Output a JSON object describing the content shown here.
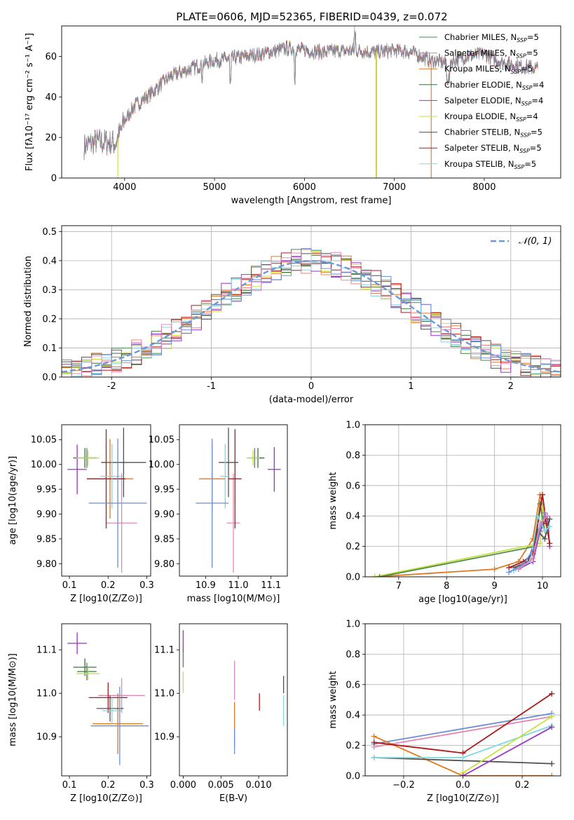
{
  "figure_title": "PLATE=0606, MJD=52365, FIBERID=0439, z=0.072",
  "model_colors": [
    "#4a8a4a",
    "#f08070",
    "#e07820",
    "#3d6d3d",
    "#9a32c8",
    "#c8e040",
    "#505050",
    "#b01818",
    "#80d8e0",
    "#6a8ed8",
    "#e088b8"
  ],
  "legend_models": [
    {
      "label": "Chabrier MILES, N",
      "sub": "SSP",
      "suffix": "=5",
      "color": "#4a8a4a"
    },
    {
      "label": "Salpeter MILES, N",
      "sub": "SSP",
      "suffix": "=5",
      "color": "#f08070"
    },
    {
      "label": "Kroupa MILES, N",
      "sub": "SSP",
      "suffix": "=5",
      "color": "#e07820"
    },
    {
      "label": "Chabrier ELODIE, N",
      "sub": "SSP",
      "suffix": "=4",
      "color": "#3d6d3d"
    },
    {
      "label": "Salpeter ELODIE, N",
      "sub": "SSP",
      "suffix": "=4",
      "color": "#9a32c8"
    },
    {
      "label": "Kroupa ELODIE, N",
      "sub": "SSP",
      "suffix": "=4",
      "color": "#c8e040"
    },
    {
      "label": "Chabrier STELIB, N",
      "sub": "SSP",
      "suffix": "=5",
      "color": "#505050"
    },
    {
      "label": "Salpeter STELIB, N",
      "sub": "SSP",
      "suffix": "=5",
      "color": "#b01818"
    },
    {
      "label": "Kroupa STELIB, N",
      "sub": "SSP",
      "suffix": "=5",
      "color": "#80d8e0"
    }
  ],
  "chart_data": [
    {
      "id": "spectrum",
      "type": "line",
      "xlabel": "wavelength [Angstrom, rest frame]",
      "ylabel": "Flux [fλ10⁻¹⁷ erg cm⁻² s⁻¹ A⁻¹]",
      "xlim": [
        3300,
        8850
      ],
      "ylim": [
        0,
        75
      ],
      "xticks": [
        4000,
        5000,
        6000,
        7000,
        8000
      ],
      "yticks": [
        0,
        20,
        40,
        60
      ],
      "continuum_x": [
        3550,
        3700,
        3900,
        4000,
        4100,
        4300,
        4500,
        4800,
        5000,
        5200,
        5500,
        5800,
        6000,
        6200,
        6500,
        6800,
        7000,
        7200,
        7400,
        7600,
        7800,
        8000,
        8200,
        8400,
        8600
      ],
      "continuum_y": [
        16,
        18,
        17,
        28,
        35,
        42,
        50,
        55,
        58,
        59,
        61,
        64,
        63,
        62,
        63,
        62,
        63,
        62,
        58,
        57,
        60,
        61,
        57,
        55,
        54
      ]
    },
    {
      "id": "residual_hist",
      "type": "histogram",
      "xlabel": "(data-model)/error",
      "ylabel": "Normed distribution",
      "xlim": [
        -2.5,
        2.5
      ],
      "ylim": [
        0,
        0.52
      ],
      "xticks": [
        -2,
        -1,
        0,
        1,
        2
      ],
      "yticks": [
        0.0,
        0.1,
        0.2,
        0.3,
        0.4,
        0.5
      ],
      "grid": true,
      "legend_position": "top-right",
      "reference_curve": "N(0,1)",
      "bin_width": 0.1
    },
    {
      "id": "age_vs_Z",
      "type": "scatter",
      "xlabel": "Z [log10(Z/Z⊙)]",
      "ylabel": "age  [log10(age/yr)]",
      "xlim": [
        0.08,
        0.31
      ],
      "ylim": [
        9.775,
        10.08
      ],
      "xticks": [
        0.1,
        0.2,
        0.3
      ],
      "yticks": [
        9.8,
        9.85,
        9.9,
        9.95,
        10.0,
        10.05
      ],
      "points": [
        {
          "x": 0.145,
          "xerr": 0.025,
          "y": 10.013,
          "yerr": 0.02,
          "color": "#4a8a4a"
        },
        {
          "x": 0.235,
          "xerr": 0.04,
          "y": 9.882,
          "yerr": 0.1,
          "color": "#e088b8"
        },
        {
          "x": 0.205,
          "xerr": 0.06,
          "y": 9.971,
          "yerr": 0.08,
          "color": "#e07820"
        },
        {
          "x": 0.14,
          "xerr": 0.03,
          "y": 10.013,
          "yerr": 0.02,
          "color": "#3d6d3d"
        },
        {
          "x": 0.12,
          "xerr": 0.025,
          "y": 9.99,
          "yerr": 0.05,
          "color": "#9a32c8"
        },
        {
          "x": 0.148,
          "xerr": 0.03,
          "y": 10.013,
          "yerr": 0.015,
          "color": "#c8e040"
        },
        {
          "x": 0.24,
          "xerr": 0.058,
          "y": 10.004,
          "yerr": 0.07,
          "color": "#505050"
        },
        {
          "x": 0.195,
          "xerr": 0.05,
          "y": 9.971,
          "yerr": 0.1,
          "color": "#b01818"
        },
        {
          "x": 0.21,
          "xerr": 0.03,
          "y": 9.976,
          "yerr": 0.065,
          "color": "#80d8e0"
        },
        {
          "x": 0.225,
          "xerr": 0.075,
          "y": 9.922,
          "yerr": 0.13,
          "color": "#6a8ed8"
        }
      ]
    },
    {
      "id": "age_vs_mass",
      "type": "scatter",
      "xlabel": "mass [log10(M/M⊙)]",
      "ylabel": "",
      "xlim": [
        10.82,
        11.15
      ],
      "ylim": [
        9.775,
        10.08
      ],
      "xticks": [
        10.9,
        11.0,
        11.1
      ],
      "yticks": [
        9.8,
        9.85,
        9.9,
        9.95,
        10.0,
        10.05
      ],
      "points": [
        {
          "x": 11.05,
          "xerr": 0.02,
          "y": 10.013,
          "yerr": 0.02,
          "color": "#4a8a4a"
        },
        {
          "x": 10.985,
          "xerr": 0.02,
          "y": 9.882,
          "yerr": 0.1,
          "color": "#e088b8"
        },
        {
          "x": 10.92,
          "xerr": 0.04,
          "y": 9.971,
          "yerr": 0.07,
          "color": "#e07820"
        },
        {
          "x": 11.06,
          "xerr": 0.02,
          "y": 10.013,
          "yerr": 0.02,
          "color": "#3d6d3d"
        },
        {
          "x": 11.11,
          "xerr": 0.02,
          "y": 9.99,
          "yerr": 0.045,
          "color": "#9a32c8"
        },
        {
          "x": 11.045,
          "xerr": 0.02,
          "y": 10.013,
          "yerr": 0.015,
          "color": "#c8e040"
        },
        {
          "x": 10.97,
          "xerr": 0.03,
          "y": 10.004,
          "yerr": 0.07,
          "color": "#505050"
        },
        {
          "x": 10.99,
          "xerr": 0.02,
          "y": 9.971,
          "yerr": 0.1,
          "color": "#b01818"
        },
        {
          "x": 10.96,
          "xerr": 0.015,
          "y": 9.976,
          "yerr": 0.065,
          "color": "#80d8e0"
        },
        {
          "x": 10.92,
          "xerr": 0.05,
          "y": 9.922,
          "yerr": 0.13,
          "color": "#6a8ed8"
        }
      ]
    },
    {
      "id": "mass_weight_vs_age",
      "type": "line",
      "xlabel": "age  [log10(age/yr)]",
      "ylabel": "mass weight",
      "xlim": [
        6.3,
        10.38
      ],
      "ylim": [
        0.0,
        1.0
      ],
      "xticks": [
        7,
        8,
        9,
        10
      ],
      "yticks": [
        0.0,
        0.2,
        0.4,
        0.6,
        0.8,
        1.0
      ],
      "grid": true,
      "series": [
        {
          "color": "#e07820",
          "x": [
            6.5,
            9.0,
            9.5,
            9.8,
            9.95,
            10.1
          ],
          "y": [
            0.0,
            0.05,
            0.1,
            0.25,
            0.54,
            0.3
          ]
        },
        {
          "color": "#c8e040",
          "x": [
            6.5,
            9.95,
            10.0,
            10.1
          ],
          "y": [
            0.0,
            0.22,
            0.45,
            0.3
          ]
        },
        {
          "color": "#4a8a4a",
          "x": [
            6.6,
            9.85,
            9.95,
            10.05
          ],
          "y": [
            0.0,
            0.2,
            0.48,
            0.3
          ]
        },
        {
          "color": "#9a32c8",
          "x": [
            9.5,
            9.8,
            9.95,
            10.1,
            10.15
          ],
          "y": [
            0.05,
            0.1,
            0.3,
            0.4,
            0.2
          ]
        },
        {
          "color": "#b01818",
          "x": [
            9.3,
            9.6,
            9.8,
            10.0,
            10.08,
            10.15
          ],
          "y": [
            0.06,
            0.1,
            0.15,
            0.54,
            0.35,
            0.22
          ]
        },
        {
          "color": "#505050",
          "x": [
            9.4,
            9.7,
            9.9,
            10.05,
            10.15
          ],
          "y": [
            0.06,
            0.1,
            0.3,
            0.25,
            0.38
          ]
        },
        {
          "color": "#80d8e0",
          "x": [
            9.4,
            9.75,
            9.9,
            10.05,
            10.15
          ],
          "y": [
            0.04,
            0.1,
            0.4,
            0.3,
            0.33
          ]
        },
        {
          "color": "#6a8ed8",
          "x": [
            9.3,
            9.6,
            9.85,
            10.05
          ],
          "y": [
            0.03,
            0.08,
            0.2,
            0.42
          ]
        },
        {
          "color": "#e088b8",
          "x": [
            9.5,
            9.8,
            9.95,
            10.1
          ],
          "y": [
            0.05,
            0.12,
            0.35,
            0.4
          ]
        }
      ]
    },
    {
      "id": "mass_vs_Z",
      "type": "scatter",
      "xlabel": "Z [log10(Z/Z⊙)]",
      "ylabel": "mass [log10(M/M⊙)]",
      "xlim": [
        0.08,
        0.31
      ],
      "ylim": [
        10.81,
        11.16
      ],
      "xticks": [
        0.1,
        0.2,
        0.3
      ],
      "yticks": [
        10.9,
        11.0,
        11.1
      ],
      "points": [
        {
          "x": 0.145,
          "xerr": 0.025,
          "y": 11.05,
          "yerr": 0.02,
          "color": "#4a8a4a"
        },
        {
          "x": 0.235,
          "xerr": 0.06,
          "y": 10.995,
          "yerr": 0.04,
          "color": "#e088b8"
        },
        {
          "x": 0.225,
          "xerr": 0.065,
          "y": 10.93,
          "yerr": 0.07,
          "color": "#e07820"
        },
        {
          "x": 0.14,
          "xerr": 0.03,
          "y": 11.06,
          "yerr": 0.02,
          "color": "#3d6d3d"
        },
        {
          "x": 0.12,
          "xerr": 0.025,
          "y": 11.115,
          "yerr": 0.025,
          "color": "#9a32c8"
        },
        {
          "x": 0.148,
          "xerr": 0.03,
          "y": 11.045,
          "yerr": 0.015,
          "color": "#c8e040"
        },
        {
          "x": 0.205,
          "xerr": 0.035,
          "y": 10.965,
          "yerr": 0.03,
          "color": "#505050"
        },
        {
          "x": 0.2,
          "xerr": 0.05,
          "y": 10.99,
          "yerr": 0.035,
          "color": "#b01818"
        },
        {
          "x": 0.21,
          "xerr": 0.025,
          "y": 10.96,
          "yerr": 0.03,
          "color": "#80d8e0"
        },
        {
          "x": 0.23,
          "xerr": 0.075,
          "y": 10.925,
          "yerr": 0.09,
          "color": "#6a8ed8"
        }
      ]
    },
    {
      "id": "mass_vs_EBV",
      "type": "scatter",
      "xlabel": "E(B-V)",
      "ylabel": "",
      "xlim": [
        -0.0005,
        0.0138
      ],
      "ylim": [
        10.81,
        11.16
      ],
      "xticks": [
        0.0,
        0.005,
        0.01
      ],
      "xtick_labels": [
        "0.000",
        "0.005",
        "0.010"
      ],
      "yticks": [
        10.9,
        11.0,
        11.1
      ],
      "points": [
        {
          "x": 0.0,
          "y": 11.08,
          "yerr": 0.02,
          "color": "#4a8a4a"
        },
        {
          "x": 0.0,
          "y": 11.12,
          "yerr": 0.025,
          "color": "#9a32c8"
        },
        {
          "x": 0.0,
          "y": 11.025,
          "yerr": 0.025,
          "color": "#c8e040"
        },
        {
          "x": 0.0068,
          "y": 11.03,
          "yerr": 0.045,
          "color": "#e088b8"
        },
        {
          "x": 0.0068,
          "y": 10.93,
          "yerr": 0.05,
          "color": "#e07820"
        },
        {
          "x": 0.0068,
          "y": 10.89,
          "yerr": 0.03,
          "color": "#6a8ed8"
        },
        {
          "x": 0.0101,
          "y": 10.98,
          "yerr": 0.02,
          "color": "#b01818"
        },
        {
          "x": 0.0133,
          "y": 11.02,
          "yerr": 0.02,
          "color": "#505050"
        },
        {
          "x": 0.0133,
          "y": 10.96,
          "yerr": 0.035,
          "color": "#80d8e0"
        }
      ]
    },
    {
      "id": "mass_weight_vs_Z",
      "type": "line",
      "xlabel": "Z [log10(Z/Z⊙)]",
      "ylabel": "mass weight",
      "xlim": [
        -0.33,
        0.33
      ],
      "ylim": [
        0.0,
        1.0
      ],
      "xticks": [
        -0.2,
        0.0,
        0.2
      ],
      "yticks": [
        0.0,
        0.2,
        0.4,
        0.6,
        0.8,
        1.0
      ],
      "grid": true,
      "series": [
        {
          "color": "#6a8ed8",
          "x": [
            -0.3,
            0.3
          ],
          "y": [
            0.21,
            0.41
          ]
        },
        {
          "color": "#e088b8",
          "x": [
            -0.3,
            0.3
          ],
          "y": [
            0.19,
            0.39
          ]
        },
        {
          "color": "#e07820",
          "x": [
            -0.3,
            0.0,
            0.3
          ],
          "y": [
            0.26,
            0.0,
            0.0
          ]
        },
        {
          "color": "#b01818",
          "x": [
            -0.3,
            0.0,
            0.3
          ],
          "y": [
            0.22,
            0.15,
            0.54
          ]
        },
        {
          "color": "#505050",
          "x": [
            -0.3,
            0.3
          ],
          "y": [
            0.12,
            0.08
          ]
        },
        {
          "color": "#80d8e0",
          "x": [
            -0.3,
            0.0,
            0.3
          ],
          "y": [
            0.12,
            0.12,
            0.33
          ]
        },
        {
          "color": "#c8e040",
          "x": [
            0.0,
            0.3
          ],
          "y": [
            0.02,
            0.39
          ]
        },
        {
          "color": "#9a32c8",
          "x": [
            0.0,
            0.3
          ],
          "y": [
            0.0,
            0.32
          ]
        }
      ]
    }
  ]
}
